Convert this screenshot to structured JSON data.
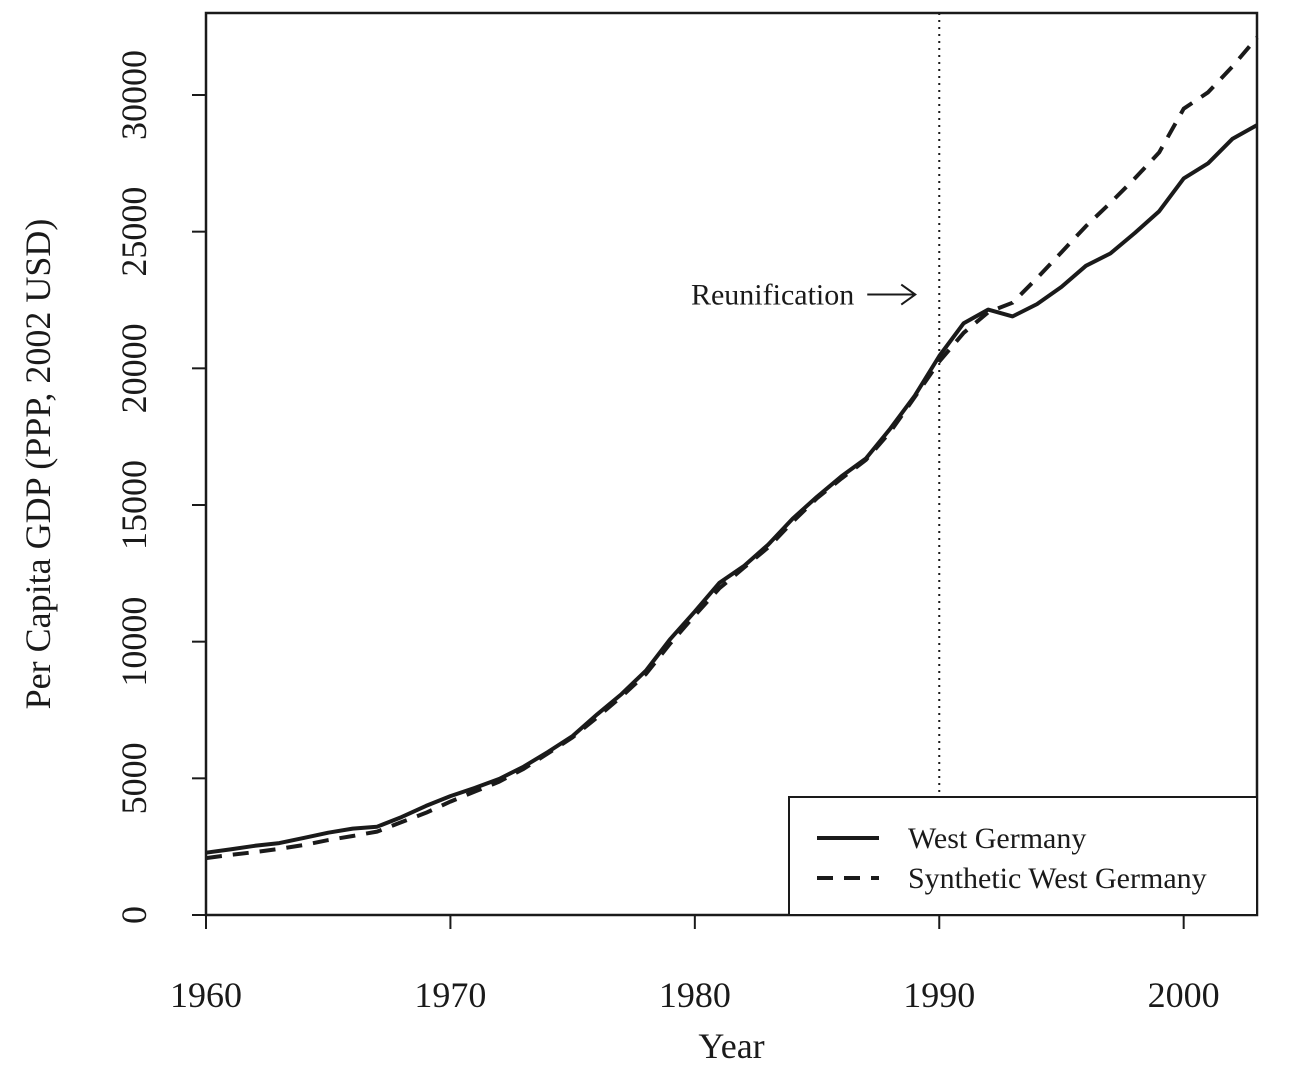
{
  "chart_data": {
    "type": "line",
    "title": "",
    "xlabel": "Year",
    "ylabel": "Per Capita GDP (PPP, 2002 USD)",
    "xlim": [
      1960,
      2003
    ],
    "ylim": [
      0,
      33000
    ],
    "xticks": [
      1960,
      1970,
      1980,
      1990,
      2000
    ],
    "yticks": [
      0,
      5000,
      10000,
      15000,
      20000,
      25000,
      30000
    ],
    "grid": false,
    "legend_position": "bottom-right",
    "x": [
      1960,
      1961,
      1962,
      1963,
      1964,
      1965,
      1966,
      1967,
      1968,
      1969,
      1970,
      1971,
      1972,
      1973,
      1974,
      1975,
      1976,
      1977,
      1978,
      1979,
      1980,
      1981,
      1982,
      1983,
      1984,
      1985,
      1986,
      1987,
      1988,
      1989,
      1990,
      1991,
      1992,
      1993,
      1994,
      1995,
      1996,
      1997,
      1998,
      1999,
      2000,
      2001,
      2002,
      2003
    ],
    "series": [
      {
        "name": "West Germany",
        "style": "solid",
        "color": "#1a1a1a",
        "values": [
          2280,
          2400,
          2530,
          2630,
          2820,
          3010,
          3160,
          3230,
          3580,
          3990,
          4350,
          4650,
          4980,
          5430,
          5970,
          6550,
          7340,
          8080,
          8940,
          10100,
          11100,
          12150,
          12760,
          13550,
          14500,
          15300,
          16050,
          16700,
          17800,
          19000,
          20450,
          21650,
          22150,
          21900,
          22350,
          22980,
          23750,
          24200,
          24950,
          25750,
          26950,
          27500,
          28400,
          28900
        ]
      },
      {
        "name": "Synthetic West Germany",
        "style": "dashed",
        "color": "#1a1a1a",
        "values": [
          2080,
          2200,
          2300,
          2420,
          2560,
          2740,
          2890,
          3050,
          3400,
          3740,
          4150,
          4520,
          4880,
          5350,
          5920,
          6500,
          7230,
          7990,
          8820,
          9940,
          10960,
          11950,
          12700,
          13450,
          14380,
          15250,
          15970,
          16650,
          17680,
          18950,
          20250,
          21300,
          22050,
          22400,
          23300,
          24250,
          25200,
          26050,
          26950,
          27900,
          29500,
          30100,
          31050,
          32100
        ]
      }
    ],
    "annotations": [
      {
        "text": "Reunification",
        "x": 1990,
        "type": "vertical-dotted-line-with-arrow"
      }
    ]
  }
}
